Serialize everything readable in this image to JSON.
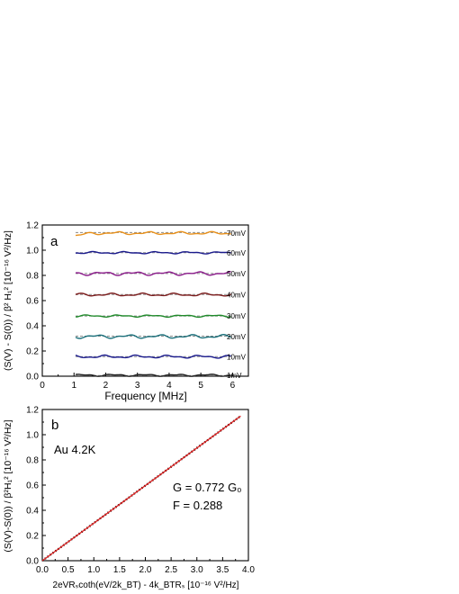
{
  "chart_data": [
    {
      "type": "line",
      "panel_label": "a",
      "xlabel": "Frequency  [MHz]",
      "ylabel": "(S(V) - S(0)) / β² H₁²   [10⁻¹⁶ V²/Hz]",
      "xlim": [
        0,
        6.5
      ],
      "ylim": [
        0,
        1.2
      ],
      "x_ticks": [
        0,
        1,
        2,
        3,
        4,
        5,
        6
      ],
      "y_ticks": [
        0.0,
        0.2,
        0.4,
        0.6,
        0.8,
        1.0,
        1.2
      ],
      "x_tick_labels": [
        "0",
        "1",
        "2",
        "3",
        "4",
        "5",
        "6"
      ],
      "y_tick_labels": [
        "0.0",
        "0.2",
        "0.4",
        "0.6",
        "0.8",
        "1.0",
        "1.2"
      ],
      "x_range": [
        1.05,
        5.95
      ],
      "grid": false,
      "series": [
        {
          "name": "1mV",
          "color": "#222222",
          "level": 0.008,
          "fit": 0.005
        },
        {
          "name": "10mV",
          "color": "#1a1a8c",
          "level": 0.155,
          "fit": 0.155
        },
        {
          "name": "20mV",
          "color": "#1a6f7a",
          "level": 0.315,
          "fit": 0.318
        },
        {
          "name": "30mV",
          "color": "#1f8a2a",
          "level": 0.478,
          "fit": 0.478
        },
        {
          "name": "40mV",
          "color": "#7a1a1a",
          "level": 0.647,
          "fit": 0.648
        },
        {
          "name": "50mV",
          "color": "#8a1a8a",
          "level": 0.815,
          "fit": 0.815
        },
        {
          "name": "60mV",
          "color": "#1a1a8c",
          "level": 0.98,
          "fit": 0.98
        },
        {
          "name": "70mV",
          "color": "#e8901a",
          "level": 1.135,
          "fit": 1.14
        }
      ]
    },
    {
      "type": "line",
      "panel_label": "b",
      "xlabel": "2eVRₛcoth(eV/2k_BT) - 4k_BTRₛ   [10⁻¹⁶ V²/Hz]",
      "ylabel": "(S(V)-S(0)) / β²H₁²   [10⁻¹⁶ V²/Hz]",
      "xlim": [
        0,
        4.0
      ],
      "ylim": [
        0,
        1.2
      ],
      "x_ticks": [
        0.0,
        0.5,
        1.0,
        1.5,
        2.0,
        2.5,
        3.0,
        3.5,
        4.0
      ],
      "y_ticks": [
        0.0,
        0.2,
        0.4,
        0.6,
        0.8,
        1.0,
        1.2
      ],
      "x_tick_labels": [
        "0.0",
        "0.5",
        "1.0",
        "1.5",
        "2.0",
        "2.5",
        "3.0",
        "3.5",
        "4.0"
      ],
      "y_tick_labels": [
        "0.0",
        "0.2",
        "0.4",
        "0.6",
        "0.8",
        "1.0",
        "1.2"
      ],
      "grid": false,
      "annotations": [
        "Au  4.2K",
        "G = 0.772 G₀",
        "F = 0.288"
      ],
      "series": [
        {
          "color": "#111111",
          "style": "dotted",
          "x": [
            0,
            3.85
          ],
          "y": [
            0,
            1.148
          ]
        },
        {
          "color": "#e02020",
          "style": "solid",
          "x": [
            0,
            3.85
          ],
          "y": [
            0,
            1.148
          ]
        }
      ]
    }
  ]
}
